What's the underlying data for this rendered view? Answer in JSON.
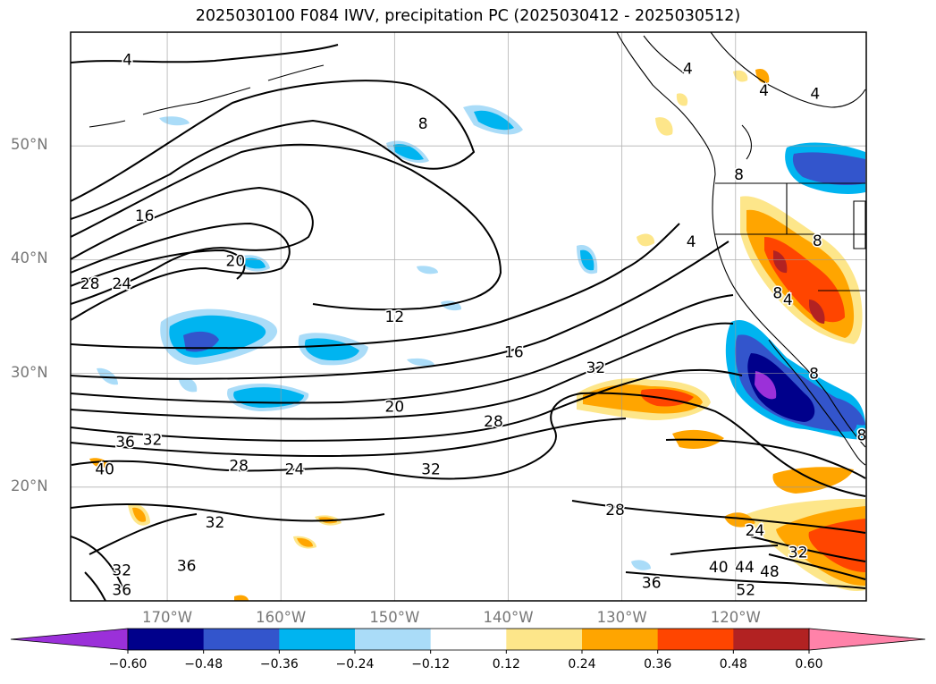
{
  "title": "2025030100 F084 IWV, precipitation PC (2025030412 - 2025030512)",
  "map": {
    "projection": "PlateCarree",
    "extent": {
      "lon_min": -178.5,
      "lon_max": -108.5,
      "lat_min": 10,
      "lat_max": 60
    },
    "gridlines": true,
    "lon_ticks": [
      {
        "lon": -170,
        "label": "170°W"
      },
      {
        "lon": -160,
        "label": "160°W"
      },
      {
        "lon": -150,
        "label": "150°W"
      },
      {
        "lon": -140,
        "label": "140°W"
      },
      {
        "lon": -130,
        "label": "130°W"
      },
      {
        "lon": -120,
        "label": "120°W"
      }
    ],
    "lat_ticks": [
      {
        "lat": 20,
        "label": "20°N"
      },
      {
        "lat": 30,
        "label": "30°N"
      },
      {
        "lat": 40,
        "label": "40°N"
      },
      {
        "lat": 50,
        "label": "50°N"
      }
    ],
    "contour_labels": [
      {
        "text": "4",
        "lon": -173.5,
        "lat": 57.6
      },
      {
        "text": "8",
        "lon": -147.5,
        "lat": 52.0
      },
      {
        "text": "16",
        "lon": -172.0,
        "lat": 43.9
      },
      {
        "text": "20",
        "lon": -164.0,
        "lat": 39.9
      },
      {
        "text": "24",
        "lon": -174.0,
        "lat": 37.9
      },
      {
        "text": "28",
        "lon": -176.8,
        "lat": 37.9
      },
      {
        "text": "12",
        "lon": -150.0,
        "lat": 35.0
      },
      {
        "text": "16",
        "lon": -139.5,
        "lat": 31.9
      },
      {
        "text": "32",
        "lon": -132.3,
        "lat": 30.5
      },
      {
        "text": "20",
        "lon": -150.0,
        "lat": 27.1
      },
      {
        "text": "28",
        "lon": -141.3,
        "lat": 25.8
      },
      {
        "text": "36",
        "lon": -173.7,
        "lat": 24.0
      },
      {
        "text": "32",
        "lon": -171.3,
        "lat": 24.2
      },
      {
        "text": "28",
        "lon": -163.7,
        "lat": 21.9
      },
      {
        "text": "24",
        "lon": -158.8,
        "lat": 21.6
      },
      {
        "text": "32",
        "lon": -146.8,
        "lat": 21.6
      },
      {
        "text": "40",
        "lon": -175.5,
        "lat": 21.6
      },
      {
        "text": "28",
        "lon": -130.6,
        "lat": 18.0
      },
      {
        "text": "32",
        "lon": -165.8,
        "lat": 16.9
      },
      {
        "text": "24",
        "lon": -118.3,
        "lat": 16.2
      },
      {
        "text": "32",
        "lon": -114.5,
        "lat": 14.3
      },
      {
        "text": "36",
        "lon": -168.3,
        "lat": 13.1
      },
      {
        "text": "40",
        "lon": -121.5,
        "lat": 13.0
      },
      {
        "text": "44",
        "lon": -119.2,
        "lat": 13.0
      },
      {
        "text": "48",
        "lon": -117.0,
        "lat": 12.6
      },
      {
        "text": "52",
        "lon": -119.1,
        "lat": 11.0
      },
      {
        "text": "36",
        "lon": -127.4,
        "lat": 11.6
      },
      {
        "text": "32",
        "lon": -174.0,
        "lat": 12.7
      },
      {
        "text": "36",
        "lon": -174.0,
        "lat": 11.0
      },
      {
        "text": "4",
        "lon": -124.2,
        "lat": 56.8
      },
      {
        "text": "4",
        "lon": -117.5,
        "lat": 54.9
      },
      {
        "text": "4",
        "lon": -113.0,
        "lat": 54.6
      },
      {
        "text": "8",
        "lon": -119.7,
        "lat": 47.5
      },
      {
        "text": "8",
        "lon": -112.8,
        "lat": 41.7
      },
      {
        "text": "8",
        "lon": -116.3,
        "lat": 37.1
      },
      {
        "text": "4",
        "lon": -115.4,
        "lat": 36.5
      },
      {
        "text": "8",
        "lon": -113.1,
        "lat": 30.0
      },
      {
        "text": "8",
        "lon": -108.9,
        "lat": 24.6
      },
      {
        "text": "4",
        "lon": -123.9,
        "lat": 41.6
      }
    ]
  },
  "fields": {
    "contours": {
      "name": "IWV",
      "levels": [
        4,
        8,
        12,
        16,
        20,
        24,
        28,
        32,
        36,
        40,
        44,
        48,
        52
      ]
    },
    "filled": {
      "name": "precipitation PC",
      "period": "2025030412 - 2025030512"
    }
  },
  "colorbar": {
    "extend": "both",
    "levels": [
      -0.72,
      -0.6,
      -0.48,
      -0.36,
      -0.24,
      -0.12,
      0.12,
      0.24,
      0.36,
      0.48,
      0.6,
      0.72
    ],
    "colors": [
      "#9b30d9",
      "#00008b",
      "#3355cc",
      "#00b4f0",
      "#aadcf8",
      "#ffffff",
      "#fde68a",
      "#ffa500",
      "#ff4500",
      "#b22222",
      "#ff82a9"
    ],
    "under_color": "#9b30d9",
    "over_color": "#ff82a9",
    "tick_labels": [
      {
        "value": -0.6,
        "label": "−0.60"
      },
      {
        "value": -0.48,
        "label": "−0.48"
      },
      {
        "value": -0.36,
        "label": "−0.36"
      },
      {
        "value": -0.24,
        "label": "−0.24"
      },
      {
        "value": -0.12,
        "label": "−0.12"
      },
      {
        "value": 0.12,
        "label": "0.12"
      },
      {
        "value": 0.24,
        "label": "0.24"
      },
      {
        "value": 0.36,
        "label": "0.36"
      },
      {
        "value": 0.48,
        "label": "0.48"
      },
      {
        "value": 0.6,
        "label": "0.60"
      }
    ]
  }
}
